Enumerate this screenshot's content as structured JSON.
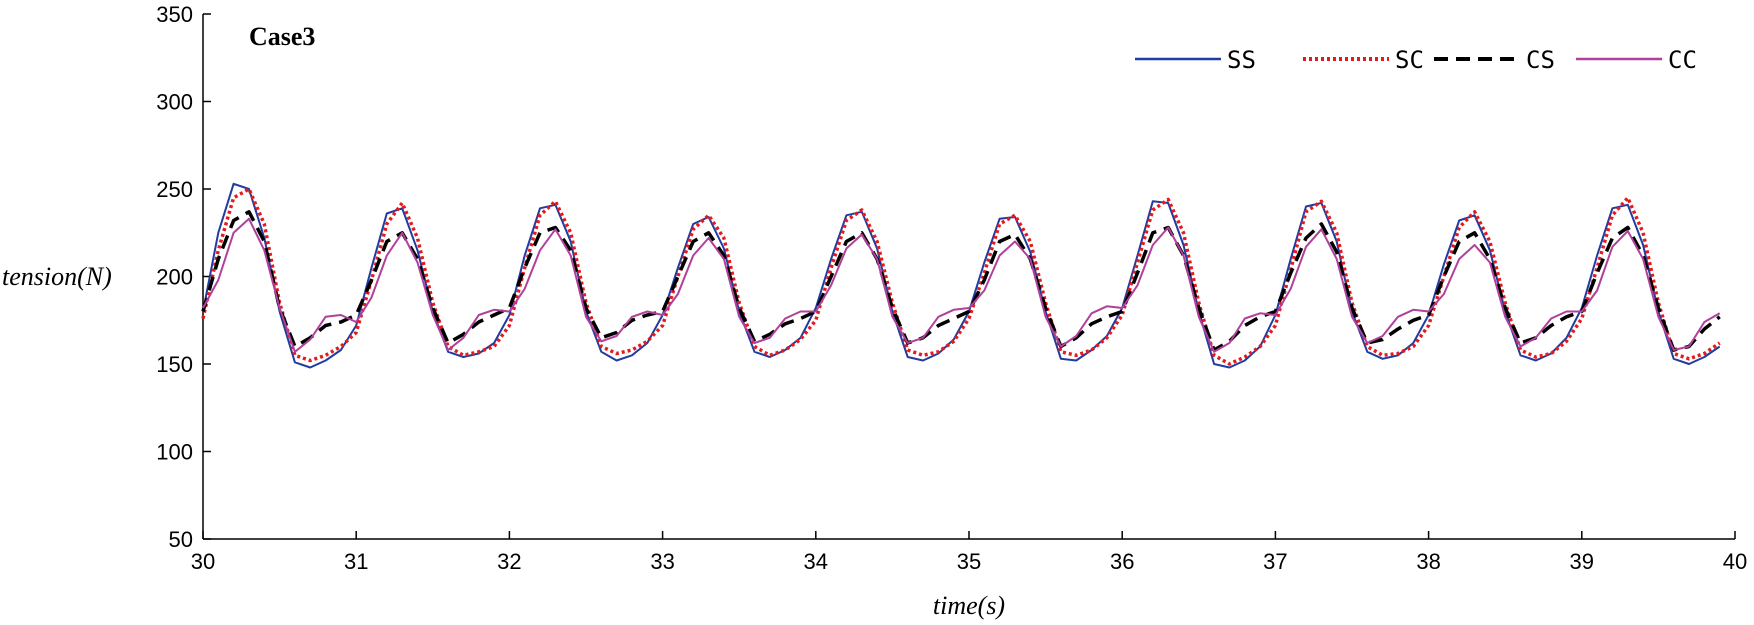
{
  "chart_data": {
    "type": "line",
    "title": "Case3",
    "xlabel": "time(s)",
    "ylabel": "tension(N)",
    "xlim": [
      30,
      40
    ],
    "ylim": [
      50,
      350
    ],
    "xticks": [
      30,
      31,
      32,
      33,
      34,
      35,
      36,
      37,
      38,
      39,
      40
    ],
    "yticks": [
      50,
      100,
      150,
      200,
      250,
      300,
      350
    ],
    "grid": false,
    "legend_position": "top-right",
    "x": [
      30.0,
      30.1,
      30.2,
      30.3,
      30.4,
      30.5,
      30.6,
      30.7,
      30.8,
      30.9,
      31.0,
      31.1,
      31.2,
      31.3,
      31.4,
      31.5,
      31.6,
      31.7,
      31.8,
      31.9,
      32.0,
      32.1,
      32.2,
      32.3,
      32.4,
      32.5,
      32.6,
      32.7,
      32.8,
      32.9,
      33.0,
      33.1,
      33.2,
      33.3,
      33.4,
      33.5,
      33.6,
      33.7,
      33.8,
      33.9,
      34.0,
      34.1,
      34.2,
      34.3,
      34.4,
      34.5,
      34.6,
      34.7,
      34.8,
      34.9,
      35.0,
      35.1,
      35.2,
      35.3,
      35.4,
      35.5,
      35.6,
      35.7,
      35.8,
      35.9,
      36.0,
      36.1,
      36.2,
      36.3,
      36.4,
      36.5,
      36.6,
      36.7,
      36.8,
      36.9,
      37.0,
      37.1,
      37.2,
      37.3,
      37.4,
      37.5,
      37.6,
      37.7,
      37.8,
      37.9,
      38.0,
      38.1,
      38.2,
      38.3,
      38.4,
      38.5,
      38.6,
      38.7,
      38.8,
      38.9,
      39.0,
      39.1,
      39.2,
      39.3,
      39.4,
      39.5,
      39.6,
      39.7,
      39.8,
      39.9
    ],
    "series": [
      {
        "name": "SS",
        "color": "#1f3da0",
        "dash": "solid",
        "values": [
          180,
          225,
          253,
          250,
          222,
          180,
          151,
          148,
          152,
          158,
          172,
          205,
          236,
          239,
          215,
          180,
          157,
          154,
          156,
          162,
          178,
          212,
          239,
          241,
          220,
          180,
          157,
          152,
          155,
          162,
          178,
          205,
          230,
          234,
          216,
          180,
          157,
          154,
          158,
          165,
          182,
          210,
          235,
          237,
          216,
          180,
          154,
          152,
          156,
          164,
          180,
          208,
          233,
          234,
          214,
          180,
          153,
          152,
          158,
          166,
          182,
          212,
          243,
          242,
          218,
          180,
          150,
          148,
          152,
          160,
          178,
          210,
          240,
          242,
          220,
          180,
          157,
          153,
          155,
          162,
          178,
          207,
          232,
          235,
          215,
          180,
          155,
          152,
          156,
          165,
          182,
          212,
          239,
          241,
          218,
          180,
          153,
          150,
          154,
          160
        ]
      },
      {
        "name": "SC",
        "color": "#e41a1c",
        "dash": "dotted",
        "values": [
          176,
          215,
          245,
          250,
          230,
          185,
          155,
          152,
          155,
          160,
          168,
          198,
          230,
          242,
          222,
          185,
          160,
          155,
          157,
          160,
          172,
          205,
          235,
          243,
          225,
          185,
          160,
          156,
          158,
          163,
          172,
          200,
          227,
          235,
          222,
          185,
          160,
          155,
          158,
          164,
          175,
          205,
          232,
          238,
          220,
          185,
          158,
          155,
          157,
          163,
          176,
          202,
          230,
          235,
          220,
          185,
          157,
          155,
          158,
          165,
          178,
          208,
          238,
          244,
          225,
          185,
          155,
          150,
          154,
          160,
          172,
          204,
          237,
          243,
          225,
          185,
          160,
          155,
          156,
          160,
          172,
          200,
          228,
          237,
          220,
          185,
          158,
          154,
          156,
          163,
          176,
          205,
          235,
          245,
          225,
          185,
          156,
          153,
          156,
          162
        ]
      },
      {
        "name": "CS",
        "color": "#000000",
        "dash": "dashed",
        "values": [
          180,
          210,
          232,
          237,
          220,
          182,
          160,
          165,
          172,
          174,
          178,
          198,
          220,
          225,
          210,
          182,
          162,
          167,
          174,
          178,
          182,
          205,
          225,
          228,
          215,
          182,
          165,
          168,
          175,
          178,
          180,
          200,
          220,
          225,
          212,
          182,
          163,
          167,
          173,
          176,
          180,
          200,
          220,
          225,
          210,
          182,
          162,
          165,
          172,
          176,
          180,
          198,
          220,
          224,
          210,
          182,
          160,
          165,
          173,
          177,
          180,
          202,
          225,
          228,
          212,
          182,
          158,
          163,
          172,
          177,
          180,
          202,
          222,
          230,
          214,
          182,
          162,
          164,
          170,
          175,
          178,
          200,
          220,
          225,
          210,
          182,
          162,
          165,
          172,
          177,
          180,
          202,
          222,
          228,
          212,
          182,
          158,
          160,
          170,
          177
        ]
      },
      {
        "name": "CC",
        "color": "#b0409a",
        "dash": "solid",
        "values": [
          182,
          198,
          225,
          233,
          215,
          182,
          157,
          164,
          177,
          178,
          174,
          188,
          212,
          225,
          208,
          178,
          158,
          165,
          178,
          181,
          180,
          193,
          215,
          227,
          212,
          177,
          163,
          166,
          177,
          180,
          178,
          190,
          212,
          222,
          210,
          177,
          162,
          165,
          176,
          180,
          180,
          195,
          216,
          224,
          210,
          177,
          162,
          165,
          177,
          181,
          182,
          192,
          212,
          220,
          210,
          177,
          160,
          166,
          179,
          183,
          182,
          195,
          218,
          228,
          212,
          177,
          157,
          162,
          176,
          179,
          178,
          193,
          217,
          227,
          210,
          177,
          162,
          166,
          177,
          181,
          180,
          190,
          210,
          218,
          208,
          177,
          160,
          165,
          176,
          180,
          180,
          192,
          217,
          226,
          210,
          177,
          158,
          160,
          174,
          179
        ]
      }
    ]
  }
}
